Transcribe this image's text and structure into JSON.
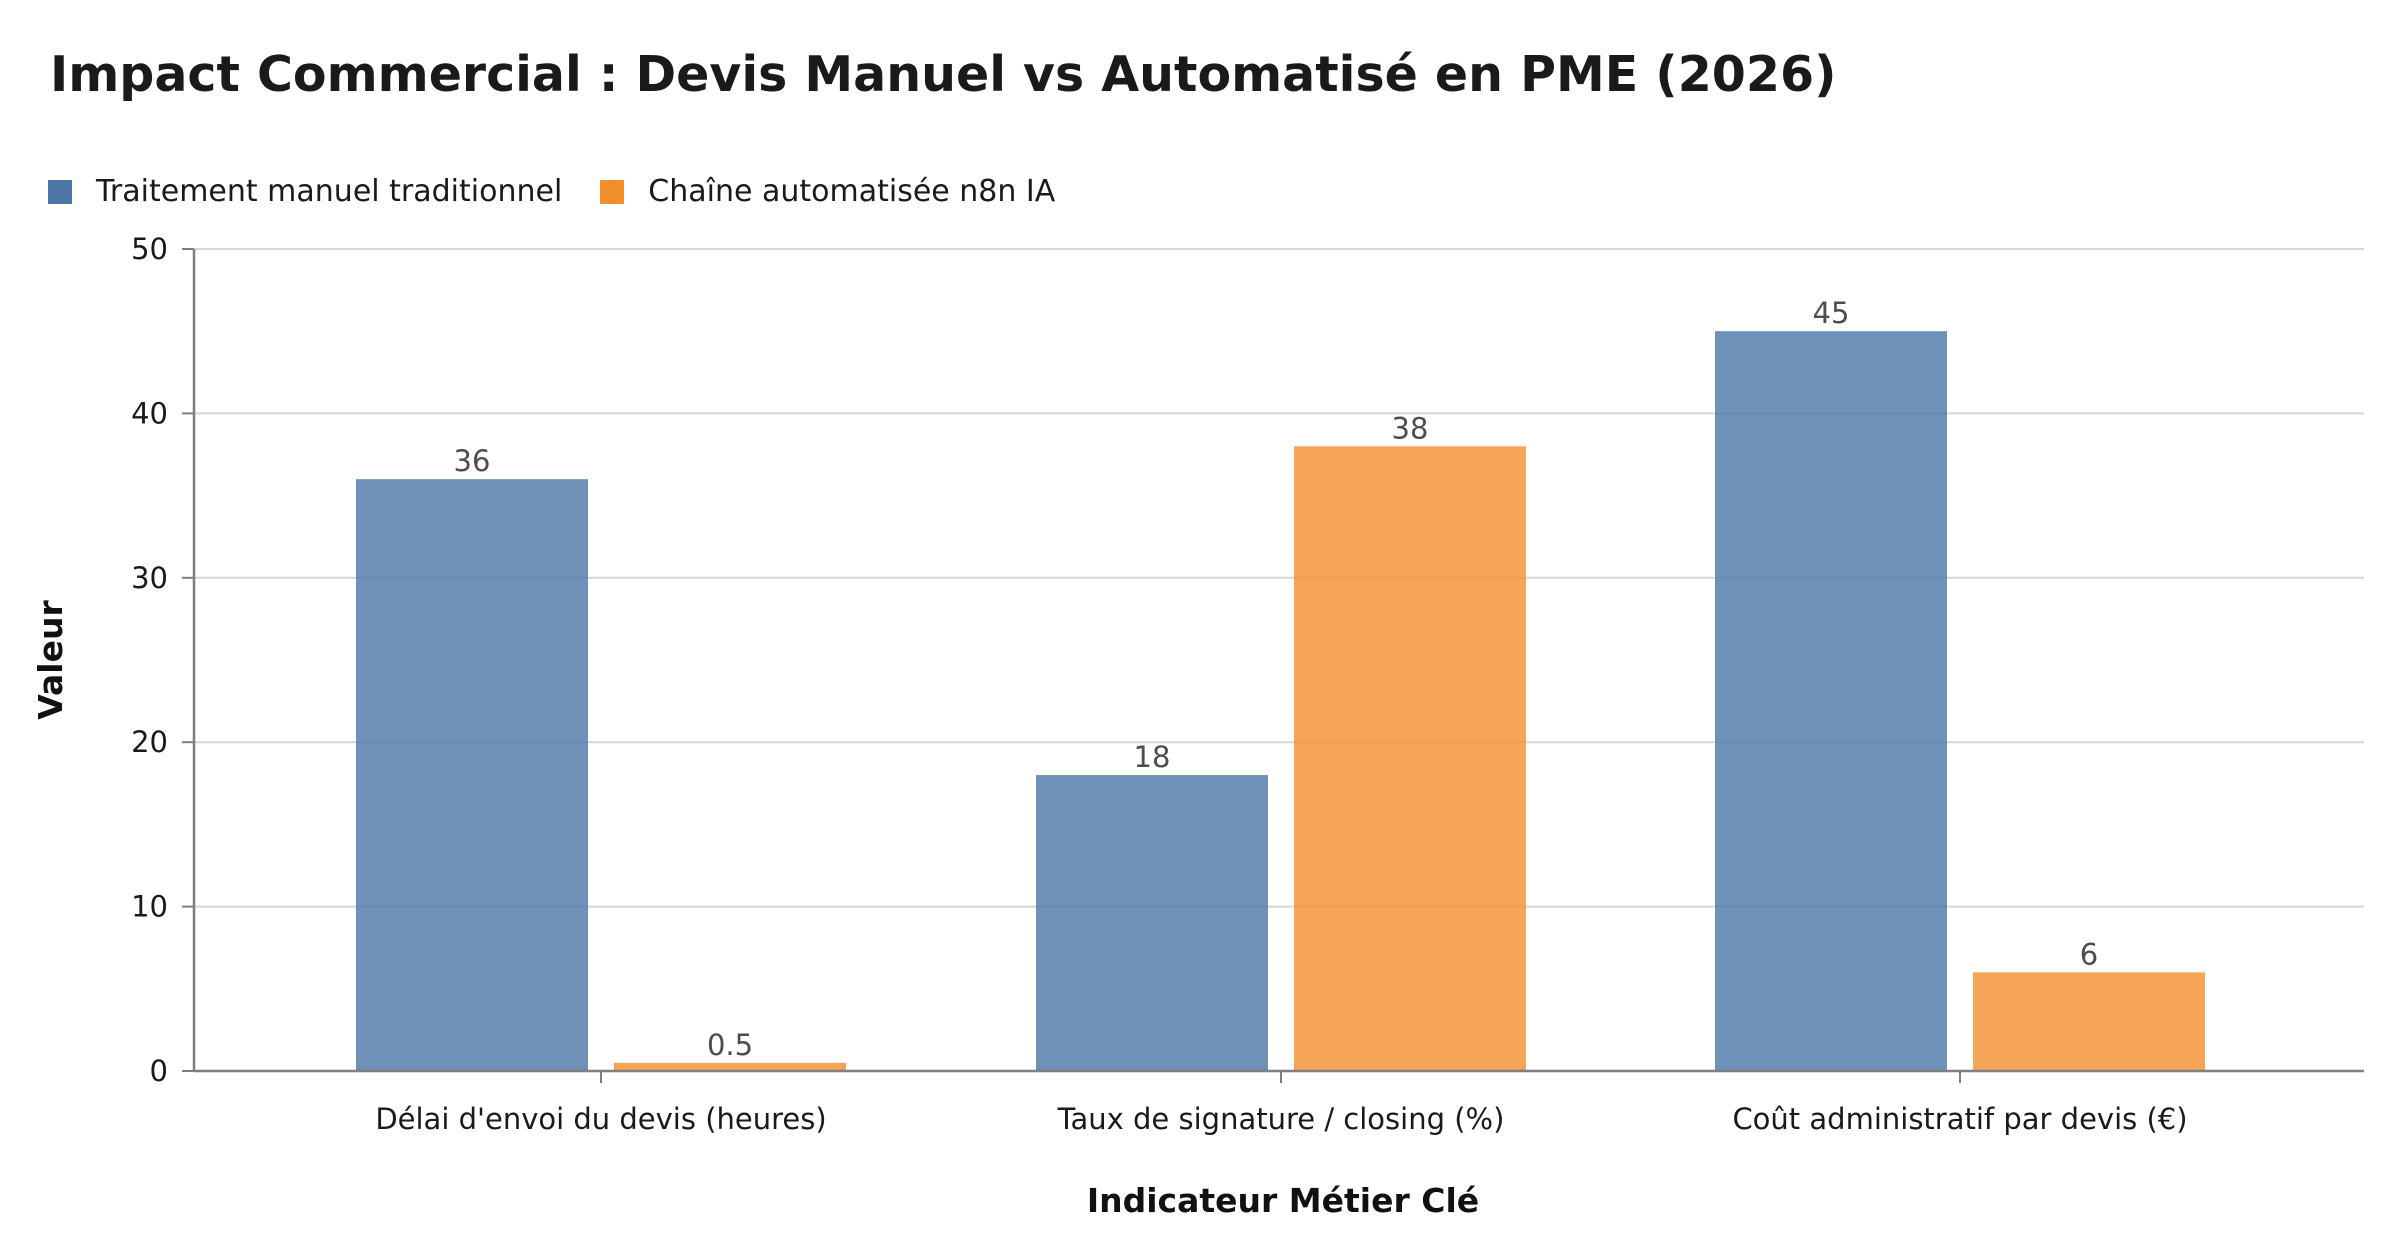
{
  "chart_data": {
    "type": "bar",
    "title": "Impact Commercial : Devis Manuel vs Automatisé en PME (2026)",
    "xlabel": "Indicateur Métier Clé",
    "ylabel": "Valeur",
    "categories": [
      "Délai d'envoi du devis (heures)",
      "Taux de signature / closing (%)",
      "Coût administratif par devis (€)"
    ],
    "series": [
      {
        "name": "Traitement manuel traditionnel",
        "color": "#4a76a8",
        "values": [
          36,
          18,
          45
        ],
        "labels": [
          "36",
          "18",
          "45"
        ]
      },
      {
        "name": "Chaîne automatisée n8n IA",
        "color": "#f28e2b",
        "values": [
          0.5,
          38,
          6
        ],
        "labels": [
          "0.5",
          "38",
          "6"
        ]
      }
    ],
    "ylim": [
      0,
      50
    ],
    "yticks": [
      0,
      10,
      20,
      30,
      40,
      50
    ],
    "grid": true,
    "legend_position": "top-left"
  }
}
